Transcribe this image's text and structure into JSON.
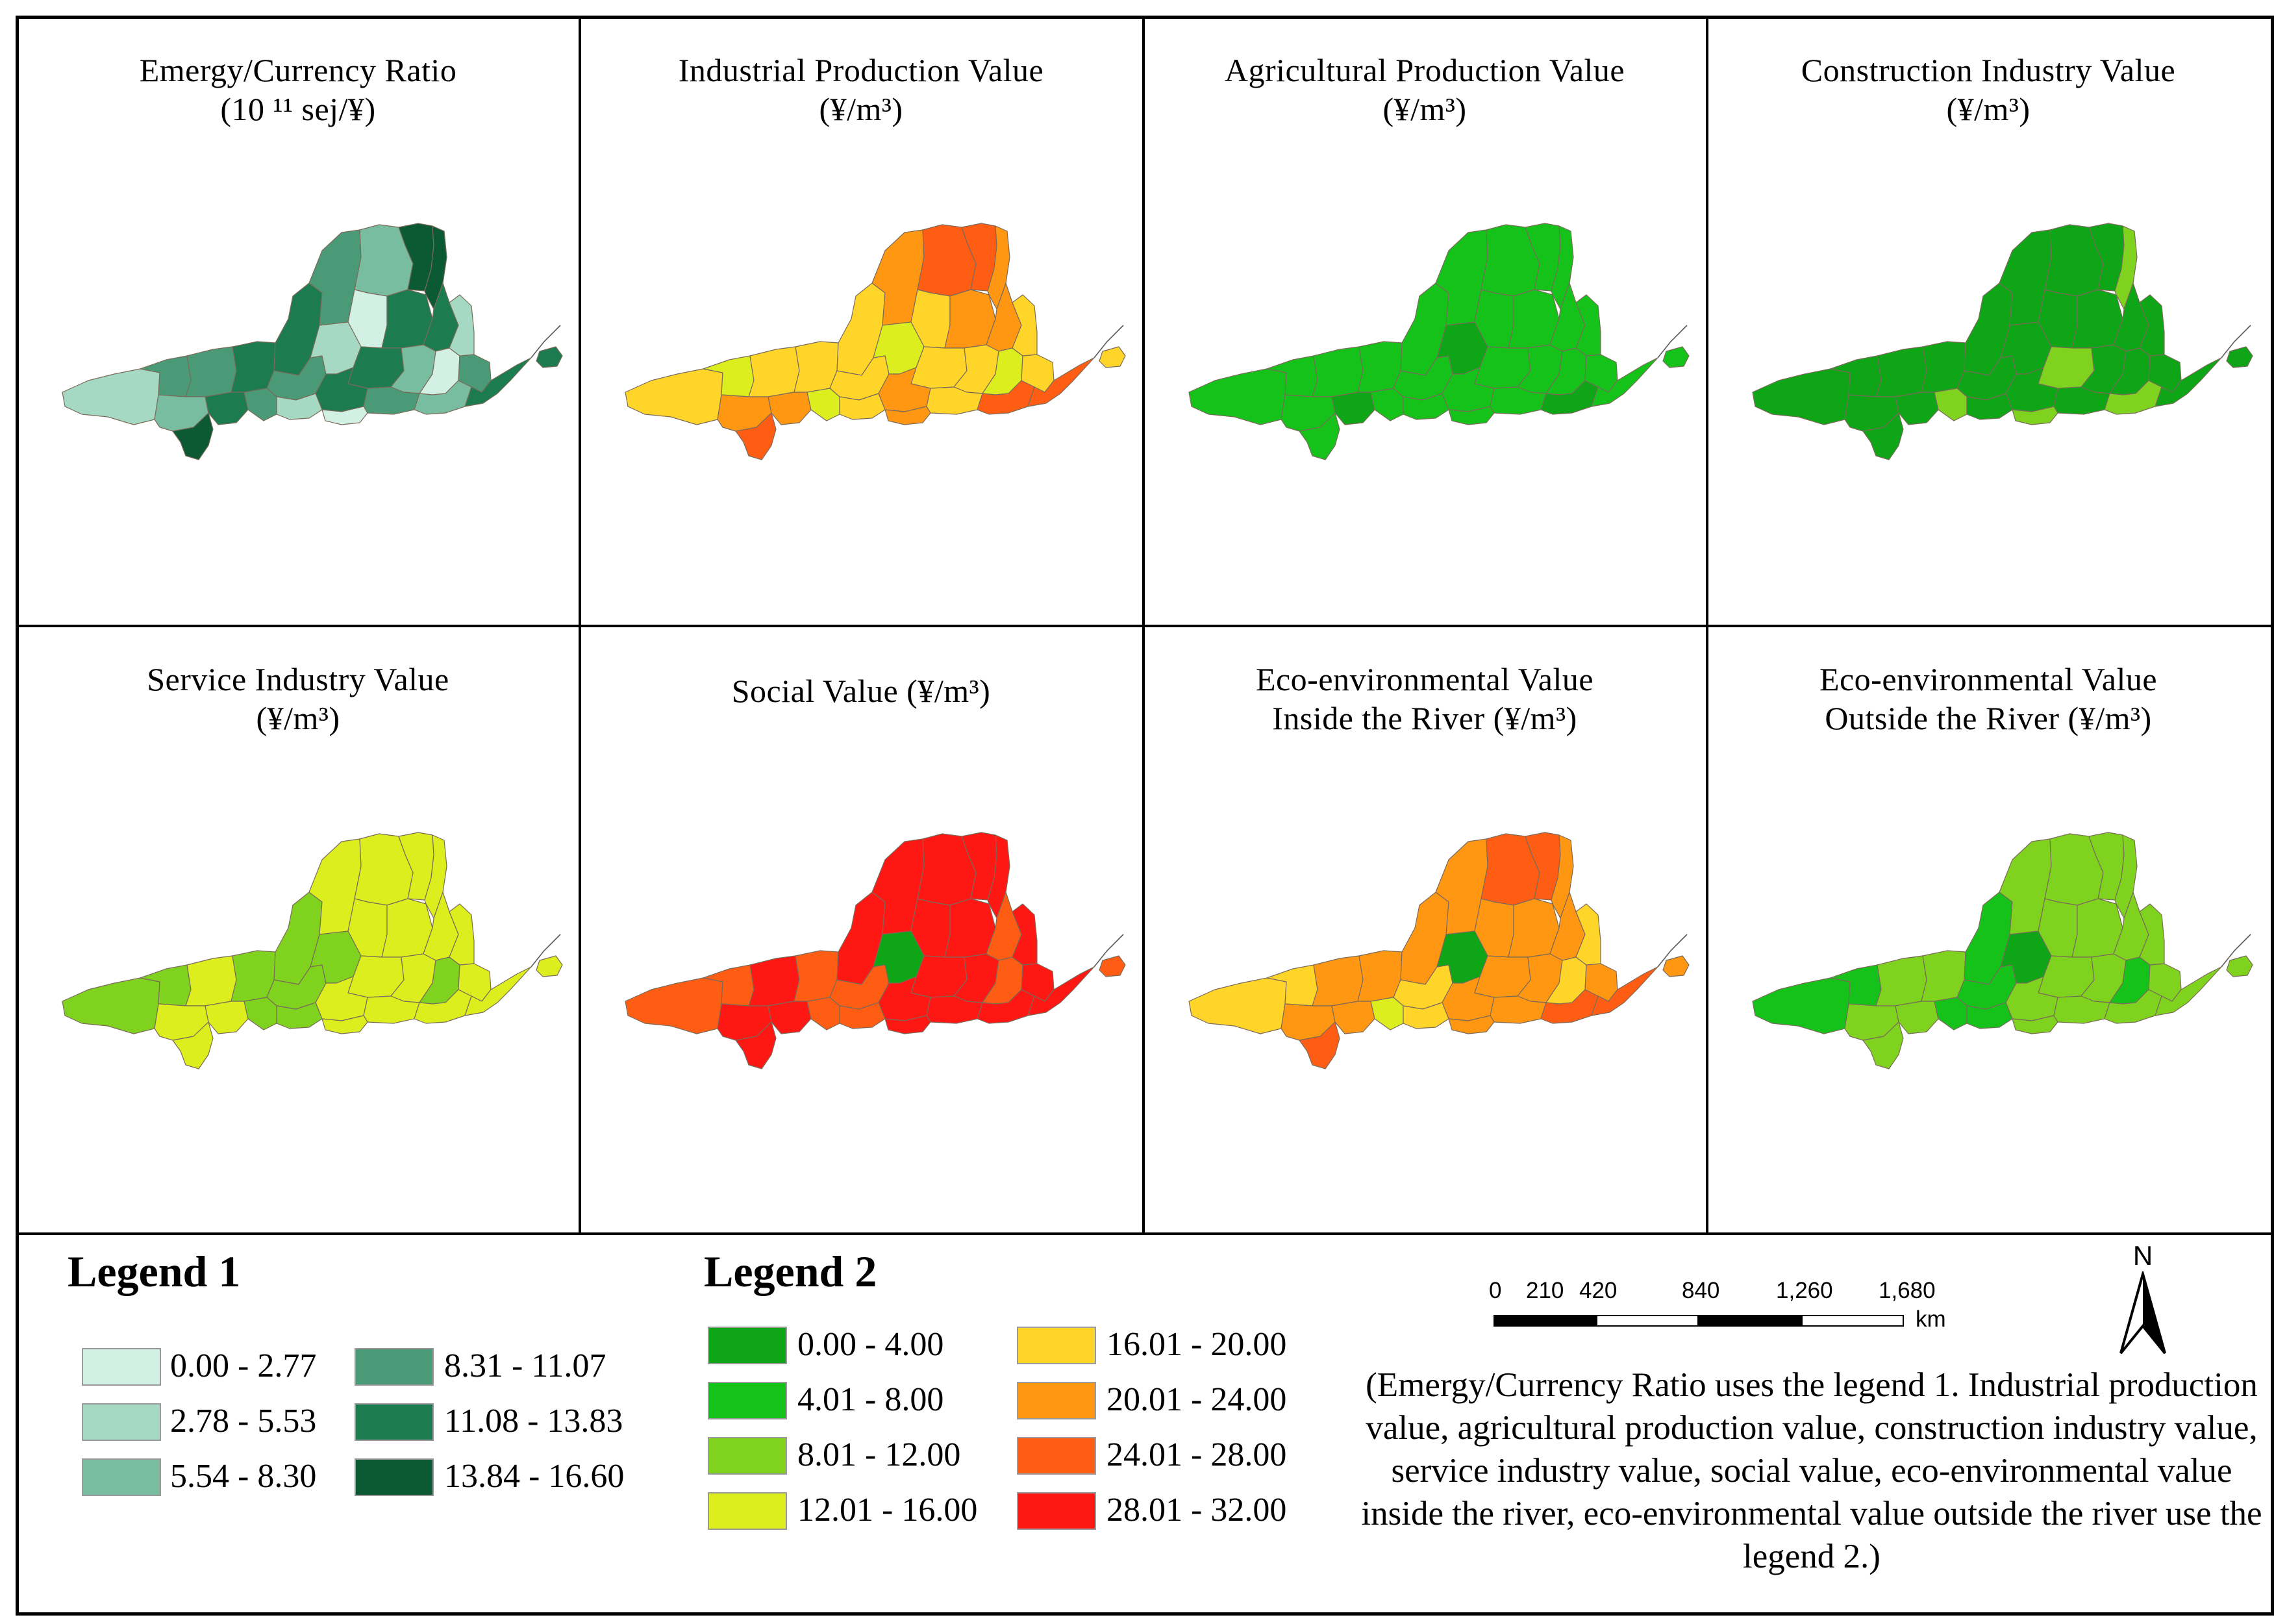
{
  "panels": [
    {
      "id": "p1",
      "title_line1": "Emergy/Currency Ratio",
      "title_line2": "(10 ¹¹ sej/¥)",
      "scheme": "legend1",
      "fills": [
        1,
        3,
        3,
        4,
        4,
        3,
        2,
        0,
        4,
        5,
        5,
        4,
        3,
        1,
        4,
        2,
        0,
        4,
        3,
        2,
        3,
        4,
        2,
        5,
        4,
        3,
        1,
        1,
        0,
        4
      ]
    },
    {
      "id": "p2",
      "title_line1": "Industrial Production Value",
      "title_line2": "(¥/m³)",
      "scheme": "legend2",
      "fills": [
        4,
        3,
        4,
        4,
        4,
        5,
        6,
        4,
        5,
        6,
        5,
        5,
        4,
        3,
        4,
        4,
        3,
        5,
        4,
        6,
        4,
        6,
        5,
        6,
        5,
        3,
        4,
        4,
        5,
        4
      ]
    },
    {
      "id": "p3",
      "title_line1": "Agricultural Production Value",
      "title_line2": "(¥/m³)",
      "scheme": "legend2",
      "fills": [
        1,
        1,
        1,
        1,
        1,
        1,
        1,
        1,
        1,
        1,
        1,
        1,
        1,
        0,
        1,
        1,
        1,
        1,
        1,
        0,
        1,
        1,
        1,
        1,
        0,
        1,
        1,
        1,
        1,
        1
      ]
    },
    {
      "id": "p4",
      "title_line1": "Construction Industry Value",
      "title_line2": "(¥/m³)",
      "scheme": "legend2",
      "fills": [
        0,
        0,
        0,
        0,
        0,
        0,
        0,
        0,
        0,
        0,
        2,
        0,
        0,
        0,
        2,
        0,
        0,
        0,
        0,
        2,
        0,
        0,
        0,
        0,
        0,
        2,
        0,
        0,
        2,
        0
      ]
    },
    {
      "id": "p5",
      "title_line1": "Service Industry Value",
      "title_line2": "(¥/m³)",
      "scheme": "legend2",
      "fills": [
        2,
        2,
        3,
        2,
        2,
        3,
        3,
        3,
        3,
        3,
        3,
        3,
        2,
        2,
        3,
        3,
        2,
        3,
        3,
        3,
        3,
        3,
        3,
        3,
        3,
        2,
        2,
        3,
        3,
        3
      ]
    },
    {
      "id": "p6",
      "title_line1": "Social Value (¥/m³)",
      "title_line2": "",
      "scheme": "legend2",
      "fills": [
        6,
        6,
        7,
        6,
        7,
        7,
        7,
        7,
        7,
        7,
        7,
        6,
        6,
        0,
        7,
        7,
        6,
        7,
        7,
        7,
        7,
        7,
        7,
        7,
        7,
        6,
        6,
        7,
        7,
        6
      ]
    },
    {
      "id": "p7",
      "title_line1": "Eco-environmental Value",
      "title_line2": "Inside the River (¥/m³)",
      "scheme": "legend2",
      "fills": [
        4,
        4,
        5,
        5,
        5,
        5,
        6,
        5,
        5,
        6,
        5,
        5,
        4,
        0,
        5,
        5,
        4,
        5,
        5,
        6,
        5,
        6,
        5,
        6,
        5,
        3,
        4,
        4,
        5,
        5
      ]
    },
    {
      "id": "p8",
      "title_line1": "Eco-environmental Value",
      "title_line2": "Outside the River (¥/m³)",
      "scheme": "legend2",
      "fills": [
        1,
        1,
        2,
        2,
        1,
        2,
        2,
        2,
        2,
        2,
        2,
        2,
        1,
        0,
        2,
        2,
        1,
        2,
        2,
        2,
        2,
        2,
        2,
        2,
        2,
        1,
        1,
        2,
        2,
        2
      ]
    }
  ],
  "colors": {
    "legend1": [
      "#d2f0e4",
      "#a6d9c3",
      "#79bda0",
      "#4a9a78",
      "#1c7c4f",
      "#0b5a33"
    ],
    "legend2": [
      "#0ea516",
      "#15c21a",
      "#7fd21d",
      "#dcee1e",
      "#ffd52a",
      "#ff9712",
      "#ff5d14",
      "#ff1714"
    ],
    "border": "#7a6a5a"
  },
  "legend1": {
    "title": "Legend 1",
    "items": [
      {
        "label": "0.00 - 2.77",
        "color": "#d2f0e4"
      },
      {
        "label": "2.78 - 5.53",
        "color": "#a6d9c3"
      },
      {
        "label": "5.54 - 8.30",
        "color": "#79bda0"
      },
      {
        "label": "8.31 - 11.07",
        "color": "#4a9a78"
      },
      {
        "label": "11.08 - 13.83",
        "color": "#1c7c4f"
      },
      {
        "label": "13.84 - 16.60",
        "color": "#0b5a33"
      }
    ]
  },
  "legend2": {
    "title": "Legend 2",
    "items": [
      {
        "label": "0.00 - 4.00",
        "color": "#0ea516"
      },
      {
        "label": "4.01 - 8.00",
        "color": "#15c21a"
      },
      {
        "label": "8.01 - 12.00",
        "color": "#7fd21d"
      },
      {
        "label": "12.01 - 16.00",
        "color": "#dcee1e"
      },
      {
        "label": "16.01 - 20.00",
        "color": "#ffd52a"
      },
      {
        "label": "20.01 - 24.00",
        "color": "#ff9712"
      },
      {
        "label": "24.01 - 28.00",
        "color": "#ff5d14"
      },
      {
        "label": "28.01 - 32.00",
        "color": "#ff1714"
      }
    ]
  },
  "scalebar": {
    "ticks": [
      "0",
      "210",
      "420",
      "840",
      "1,260",
      "1,680"
    ],
    "tick_values": [
      0,
      210,
      420,
      840,
      1260,
      1680
    ],
    "unit": "km"
  },
  "north": "N",
  "note": "(Emergy/Currency Ratio uses the legend 1. Industrial production value, agricultural production value, construction industry value, service industry value, social value, eco-environmental value inside the river, eco-environmental value outside the river use the legend 2.)"
}
